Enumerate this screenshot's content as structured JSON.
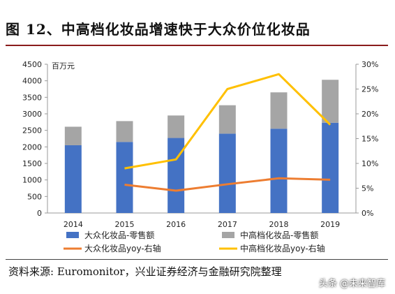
{
  "header": {
    "title": "图 12、中高档化妆品增速快于大众价位化妆品"
  },
  "footer": {
    "source": "资料来源: Euromonitor，兴业证券经济与金融研究院整理",
    "watermark": "头条 @未来智库"
  },
  "chart_data": {
    "type": "bar",
    "stacked": true,
    "categories": [
      "2014",
      "2015",
      "2016",
      "2017",
      "2018",
      "2019"
    ],
    "y_left": {
      "unit_label": "百万元",
      "range": [
        0,
        4500
      ],
      "ticks": [
        0,
        500,
        1000,
        1500,
        2000,
        2500,
        3000,
        3500,
        4000,
        4500
      ]
    },
    "y_right": {
      "range": [
        0,
        30
      ],
      "ticks": [
        "0%",
        "5%",
        "10%",
        "15%",
        "20%",
        "25%",
        "30%"
      ]
    },
    "series": [
      {
        "name": "大众化妆品-零售额",
        "kind": "bar",
        "axis": "left",
        "color": "#4472C4",
        "values": [
          2050,
          2150,
          2270,
          2400,
          2550,
          2730
        ]
      },
      {
        "name": "中高档化妆品-零售额",
        "kind": "bar",
        "axis": "left",
        "color": "#A5A5A5",
        "values": [
          560,
          630,
          680,
          860,
          1100,
          1300
        ]
      },
      {
        "name": "大众化妆品yoy-右轴",
        "kind": "line",
        "axis": "right",
        "color": "#ED7D31",
        "values": [
          null,
          5.7,
          4.5,
          5.8,
          7.0,
          6.7
        ]
      },
      {
        "name": "中高档化妆品yoy-右轴",
        "kind": "line",
        "axis": "right",
        "color": "#FFC000",
        "values": [
          null,
          9.0,
          10.8,
          25.0,
          28.0,
          17.8
        ]
      }
    ],
    "legend_position": "bottom",
    "grid": false
  }
}
